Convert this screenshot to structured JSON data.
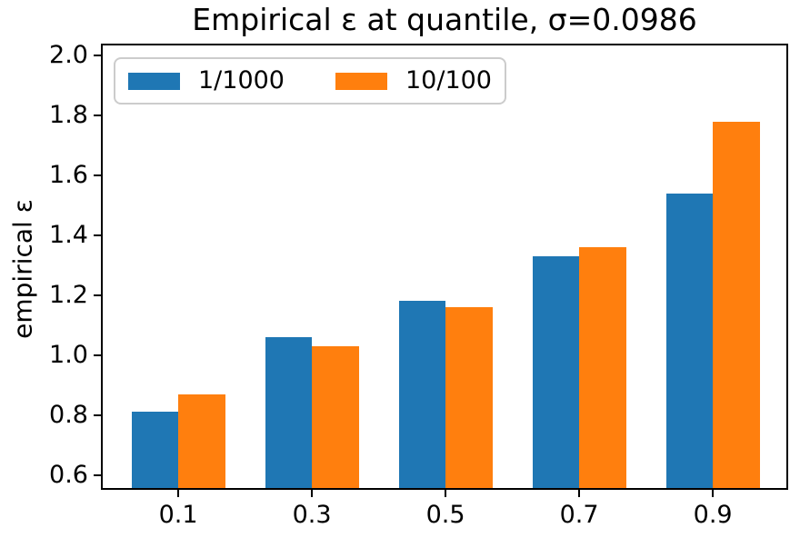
{
  "figure": {
    "background": "#ffffff",
    "axis_color": "#000000"
  },
  "chart_data": {
    "type": "bar",
    "title": "Empirical ε at quantile, σ=0.0986",
    "xlabel": "",
    "ylabel": "empirical ε",
    "categories": [
      "0.1",
      "0.3",
      "0.5",
      "0.7",
      "0.9"
    ],
    "series": [
      {
        "name": "1/1000",
        "color": "#1f77b4",
        "values": [
          0.81,
          1.06,
          1.18,
          1.33,
          1.54
        ]
      },
      {
        "name": "10/100",
        "color": "#ff7f0e",
        "values": [
          0.87,
          1.03,
          1.16,
          1.36,
          1.78
        ]
      }
    ],
    "ytick_labels": [
      "0.6",
      "0.8",
      "1.0",
      "1.2",
      "1.4",
      "1.6",
      "1.8",
      "2.0"
    ],
    "yticks": [
      0.6,
      0.8,
      1.0,
      1.2,
      1.4,
      1.6,
      1.8,
      2.0
    ],
    "ylim": [
      0.556,
      2.034
    ],
    "xlim": [
      -0.013,
      1.01
    ],
    "bar_width": 0.07,
    "legend_position": "upper left",
    "legend_edge_color": "#cccccc",
    "grid": false
  }
}
